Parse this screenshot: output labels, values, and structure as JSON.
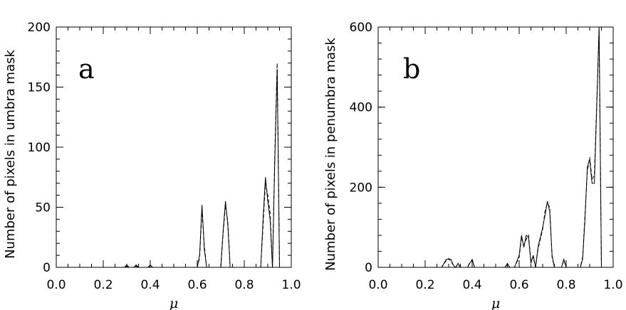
{
  "chart_data": [
    {
      "type": "line",
      "panel_label": "a",
      "xlabel": "μ",
      "ylabel": "Number of pixels in umbra mask",
      "xlim": [
        0.0,
        1.0
      ],
      "ylim": [
        0,
        200
      ],
      "xticks": [
        "0.0",
        "0.2",
        "0.4",
        "0.6",
        "0.8",
        "1.0"
      ],
      "yticks": [
        "0",
        "50",
        "100",
        "150",
        "200"
      ],
      "series": [
        {
          "style": "solid",
          "x": [
            0.0,
            0.29,
            0.3,
            0.31,
            0.33,
            0.34,
            0.35,
            0.39,
            0.4,
            0.41,
            0.6,
            0.61,
            0.62,
            0.63,
            0.64,
            0.7,
            0.71,
            0.72,
            0.73,
            0.74,
            0.87,
            0.88,
            0.89,
            0.9,
            0.91,
            0.92,
            0.93,
            0.94,
            0.95,
            1.0
          ],
          "y": [
            0,
            0,
            2,
            0,
            0,
            2,
            0,
            0,
            2,
            0,
            0,
            10,
            52,
            15,
            0,
            0,
            30,
            55,
            35,
            0,
            0,
            40,
            75,
            55,
            40,
            0,
            90,
            165,
            0,
            0
          ]
        },
        {
          "style": "dashed",
          "x": [
            0.0,
            0.29,
            0.3,
            0.31,
            0.33,
            0.34,
            0.35,
            0.39,
            0.4,
            0.41,
            0.6,
            0.61,
            0.62,
            0.63,
            0.64,
            0.7,
            0.71,
            0.72,
            0.73,
            0.74,
            0.87,
            0.88,
            0.89,
            0.9,
            0.91,
            0.92,
            0.93,
            0.94,
            0.95,
            1.0
          ],
          "y": [
            0,
            0,
            1,
            0,
            0,
            1,
            0,
            0,
            1,
            0,
            0,
            8,
            48,
            18,
            0,
            0,
            28,
            52,
            38,
            0,
            0,
            35,
            70,
            60,
            45,
            0,
            95,
            170,
            0,
            0
          ]
        }
      ]
    },
    {
      "type": "line",
      "panel_label": "b",
      "xlabel": "μ",
      "ylabel": "Number of pixels in penumbra mask",
      "xlim": [
        0.0,
        1.0
      ],
      "ylim": [
        0,
        600
      ],
      "xticks": [
        "0.0",
        "0.2",
        "0.4",
        "0.6",
        "0.8",
        "1.0"
      ],
      "yticks": [
        "0",
        "200",
        "400",
        "600"
      ],
      "series": [
        {
          "style": "solid",
          "x": [
            0.0,
            0.27,
            0.28,
            0.29,
            0.3,
            0.31,
            0.32,
            0.33,
            0.34,
            0.35,
            0.38,
            0.39,
            0.4,
            0.41,
            0.54,
            0.55,
            0.56,
            0.58,
            0.6,
            0.61,
            0.62,
            0.63,
            0.64,
            0.65,
            0.66,
            0.67,
            0.68,
            0.7,
            0.71,
            0.72,
            0.73,
            0.74,
            0.75,
            0.78,
            0.79,
            0.8,
            0.86,
            0.87,
            0.88,
            0.89,
            0.9,
            0.91,
            0.92,
            0.93,
            0.94,
            0.95,
            1.0
          ],
          "y": [
            0,
            0,
            10,
            20,
            20,
            20,
            5,
            0,
            10,
            0,
            0,
            10,
            20,
            0,
            0,
            10,
            0,
            0,
            30,
            80,
            50,
            80,
            75,
            10,
            30,
            0,
            50,
            100,
            130,
            165,
            140,
            30,
            0,
            0,
            20,
            0,
            0,
            20,
            120,
            250,
            270,
            210,
            210,
            400,
            600,
            0,
            0
          ]
        },
        {
          "style": "dashed",
          "x": [
            0.0,
            0.27,
            0.28,
            0.29,
            0.3,
            0.31,
            0.32,
            0.33,
            0.34,
            0.35,
            0.38,
            0.39,
            0.4,
            0.41,
            0.54,
            0.55,
            0.56,
            0.58,
            0.6,
            0.61,
            0.62,
            0.63,
            0.64,
            0.65,
            0.66,
            0.67,
            0.68,
            0.7,
            0.71,
            0.72,
            0.73,
            0.74,
            0.75,
            0.78,
            0.79,
            0.8,
            0.86,
            0.87,
            0.88,
            0.89,
            0.9,
            0.91,
            0.92,
            0.93,
            0.94,
            0.95,
            1.0
          ],
          "y": [
            0,
            0,
            8,
            18,
            22,
            15,
            5,
            0,
            8,
            0,
            0,
            12,
            18,
            0,
            0,
            8,
            0,
            0,
            25,
            75,
            55,
            70,
            80,
            15,
            25,
            0,
            45,
            95,
            140,
            160,
            150,
            25,
            0,
            0,
            18,
            0,
            0,
            25,
            130,
            240,
            275,
            220,
            230,
            410,
            590,
            0,
            0
          ]
        }
      ]
    }
  ]
}
